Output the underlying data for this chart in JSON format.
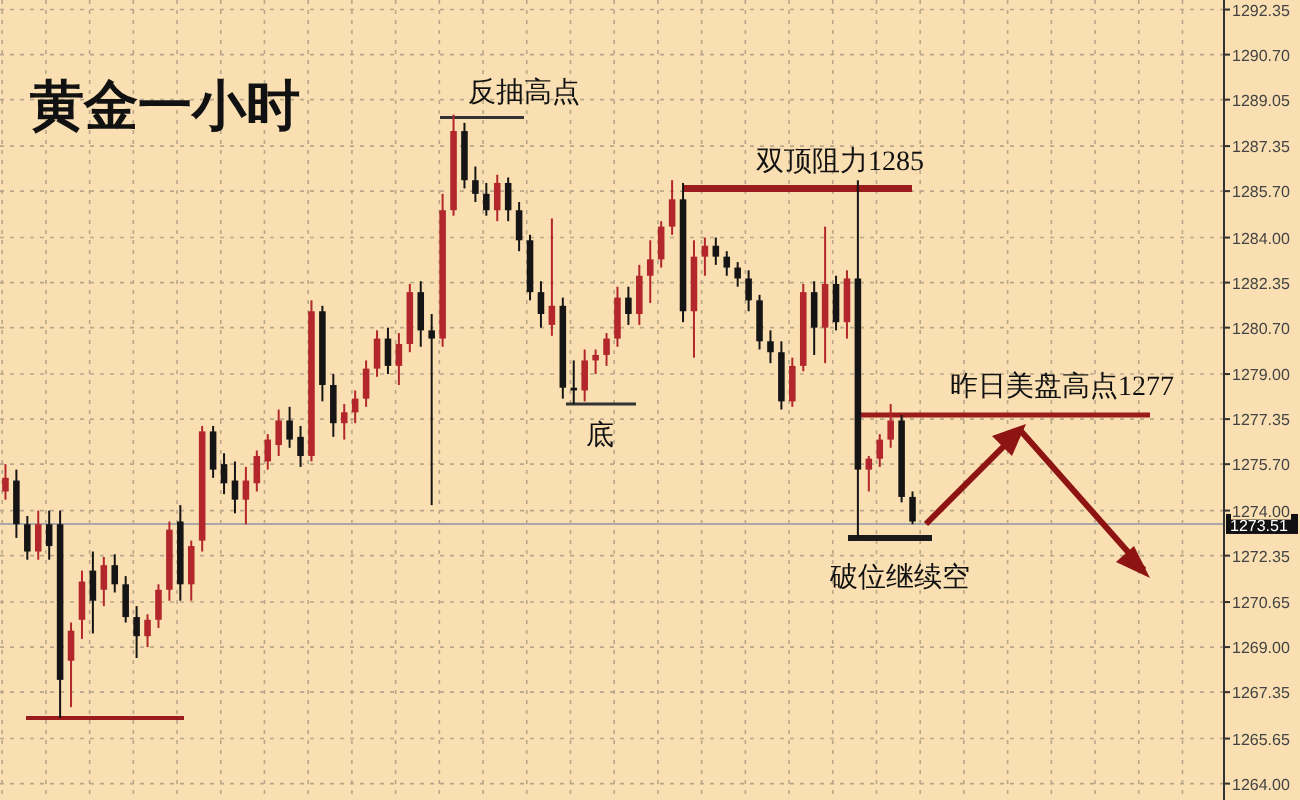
{
  "chart_data": {
    "type": "candlestick",
    "title": "黄金一小时",
    "categories": [
      null,
      null,
      null,
      null,
      null,
      null,
      null,
      null,
      null,
      null,
      null,
      null,
      null,
      null,
      null,
      null,
      null,
      null,
      null,
      null,
      null,
      null,
      null,
      null,
      null,
      null,
      null,
      null,
      null,
      null,
      null,
      null,
      null,
      null,
      null,
      null,
      null,
      null,
      null,
      null,
      null,
      null,
      null,
      null,
      null,
      null,
      null,
      null,
      null,
      null,
      null,
      null,
      null,
      null,
      null,
      null,
      null,
      null,
      null,
      null,
      null,
      null,
      null,
      null,
      null,
      null,
      null,
      null,
      null,
      null,
      null,
      null,
      null,
      null,
      null,
      null,
      null,
      null,
      null,
      null,
      null,
      null,
      null,
      null,
      null,
      null,
      null,
      null,
      null,
      null,
      null,
      null,
      null,
      null,
      null,
      null,
      null,
      null,
      null,
      null,
      null,
      null,
      null,
      null,
      null,
      null,
      null,
      null,
      null,
      null,
      null,
      null
    ],
    "ohlc": [
      [
        1274.7,
        1275.7,
        1274.4,
        1275.2
      ],
      [
        1275.1,
        1275.5,
        1273.0,
        1273.5
      ],
      [
        1273.5,
        1273.8,
        1272.2,
        1272.5
      ],
      [
        1272.5,
        1274.0,
        1272.2,
        1273.5
      ],
      [
        1273.5,
        1274.0,
        1272.2,
        1272.7
      ],
      [
        1273.5,
        1274.0,
        1266.4,
        1267.8
      ],
      [
        1268.5,
        1269.9,
        1266.8,
        1269.6
      ],
      [
        1270.0,
        1271.8,
        1269.3,
        1271.4
      ],
      [
        1271.8,
        1272.5,
        1269.5,
        1270.7
      ],
      [
        1271.1,
        1272.3,
        1270.5,
        1272.0
      ],
      [
        1272.0,
        1272.4,
        1271.0,
        1271.3
      ],
      [
        1271.3,
        1271.6,
        1269.9,
        1270.1
      ],
      [
        1270.1,
        1270.5,
        1268.6,
        1269.4
      ],
      [
        1269.4,
        1270.2,
        1269.0,
        1270.0
      ],
      [
        1270.0,
        1271.3,
        1269.7,
        1271.1
      ],
      [
        1271.1,
        1273.6,
        1270.7,
        1273.3
      ],
      [
        1273.6,
        1274.2,
        1270.7,
        1271.3
      ],
      [
        1271.3,
        1272.9,
        1270.7,
        1272.7
      ],
      [
        1272.9,
        1277.1,
        1272.5,
        1276.9
      ],
      [
        1276.9,
        1277.1,
        1275.2,
        1275.5
      ],
      [
        1275.7,
        1276.1,
        1274.6,
        1275.0
      ],
      [
        1275.1,
        1275.8,
        1273.9,
        1274.4
      ],
      [
        1274.4,
        1275.6,
        1273.5,
        1275.1
      ],
      [
        1275.0,
        1276.2,
        1274.7,
        1276.0
      ],
      [
        1275.8,
        1276.8,
        1275.5,
        1276.6
      ],
      [
        1276.4,
        1277.7,
        1276.0,
        1277.3
      ],
      [
        1277.3,
        1277.8,
        1276.3,
        1276.6
      ],
      [
        1276.7,
        1277.1,
        1275.6,
        1276.0
      ],
      [
        1276.0,
        1281.7,
        1275.8,
        1281.3
      ],
      [
        1281.3,
        1281.5,
        1278.0,
        1278.6
      ],
      [
        1278.6,
        1279.0,
        1276.7,
        1277.2
      ],
      [
        1277.2,
        1277.9,
        1276.6,
        1277.6
      ],
      [
        1277.6,
        1278.4,
        1277.2,
        1278.1
      ],
      [
        1278.1,
        1279.5,
        1277.8,
        1279.2
      ],
      [
        1279.2,
        1280.6,
        1278.9,
        1280.3
      ],
      [
        1280.3,
        1280.7,
        1279.0,
        1279.3
      ],
      [
        1279.3,
        1280.5,
        1278.6,
        1280.1
      ],
      [
        1280.1,
        1282.3,
        1279.8,
        1282.0
      ],
      [
        1282.0,
        1282.4,
        1280.0,
        1280.6
      ],
      [
        1280.6,
        1281.2,
        1274.2,
        1280.3
      ],
      [
        1280.3,
        1285.6,
        1280.0,
        1285.0
      ],
      [
        1285.0,
        1288.5,
        1284.8,
        1287.9
      ],
      [
        1287.9,
        1288.2,
        1285.8,
        1286.1
      ],
      [
        1286.1,
        1286.6,
        1285.3,
        1285.6
      ],
      [
        1285.6,
        1286.0,
        1284.8,
        1285.0
      ],
      [
        1285.0,
        1286.3,
        1284.6,
        1286.0
      ],
      [
        1286.0,
        1286.2,
        1284.6,
        1285.0
      ],
      [
        1285.0,
        1285.3,
        1283.5,
        1283.9
      ],
      [
        1283.9,
        1284.1,
        1281.7,
        1282.0
      ],
      [
        1282.0,
        1282.4,
        1280.7,
        1281.2
      ],
      [
        1280.8,
        1284.7,
        1280.4,
        1281.5
      ],
      [
        1281.5,
        1281.8,
        1278.1,
        1278.5
      ],
      [
        1278.5,
        1279.5,
        1277.9,
        1278.4
      ],
      [
        1278.4,
        1279.9,
        1278.0,
        1279.5
      ],
      [
        1279.5,
        1279.9,
        1279.0,
        1279.7
      ],
      [
        1279.7,
        1280.5,
        1279.3,
        1280.3
      ],
      [
        1280.3,
        1282.2,
        1280.0,
        1281.8
      ],
      [
        1281.8,
        1282.2,
        1280.8,
        1281.2
      ],
      [
        1281.2,
        1283.0,
        1280.8,
        1282.6
      ],
      [
        1282.6,
        1283.9,
        1281.6,
        1283.2
      ],
      [
        1283.2,
        1284.6,
        1282.9,
        1284.4
      ],
      [
        1284.4,
        1286.1,
        1284.1,
        1285.4
      ],
      [
        1285.4,
        1286.0,
        1280.9,
        1281.3
      ],
      [
        1281.3,
        1283.9,
        1279.6,
        1283.3
      ],
      [
        1283.3,
        1284.0,
        1282.6,
        1283.7
      ],
      [
        1283.7,
        1284.0,
        1283.0,
        1283.3
      ],
      [
        1283.3,
        1283.5,
        1282.6,
        1282.9
      ],
      [
        1282.9,
        1283.1,
        1282.2,
        1282.5
      ],
      [
        1282.5,
        1282.8,
        1281.3,
        1281.7
      ],
      [
        1281.7,
        1281.9,
        1279.9,
        1280.2
      ],
      [
        1280.2,
        1280.6,
        1279.4,
        1279.8
      ],
      [
        1279.8,
        1280.2,
        1277.7,
        1278.0
      ],
      [
        1278.0,
        1279.6,
        1277.8,
        1279.3
      ],
      [
        1279.3,
        1282.3,
        1279.1,
        1282.0
      ],
      [
        1282.0,
        1282.4,
        1279.7,
        1280.7
      ],
      [
        1280.7,
        1284.4,
        1279.4,
        1282.3
      ],
      [
        1282.3,
        1282.6,
        1280.6,
        1280.9
      ],
      [
        1280.9,
        1282.8,
        1280.3,
        1282.5
      ],
      [
        1282.5,
        1286.1,
        1273.0,
        1275.5
      ],
      [
        1275.5,
        1276.0,
        1274.7,
        1275.9
      ],
      [
        1275.9,
        1276.8,
        1275.6,
        1276.6
      ],
      [
        1276.6,
        1277.9,
        1276.3,
        1277.3
      ],
      [
        1277.3,
        1277.5,
        1274.3,
        1274.5
      ],
      [
        1274.5,
        1274.7,
        1273.5,
        1273.6
      ],
      null,
      null,
      null,
      null,
      null,
      null,
      null,
      null,
      null,
      null,
      null,
      null,
      null,
      null,
      null,
      null,
      null,
      null,
      null,
      null,
      null,
      null,
      null,
      null,
      null,
      null,
      null,
      null
    ],
    "colors": [
      "#b3262b",
      "#151515",
      "#151515",
      "#b3262b",
      "#151515",
      "#151515",
      "#b3262b",
      "#b3262b",
      "#151515",
      "#b3262b",
      "#151515",
      "#151515",
      "#151515",
      "#b3262b",
      "#b3262b",
      "#b3262b",
      "#151515",
      "#b3262b",
      "#b3262b",
      "#151515",
      "#151515",
      "#151515",
      "#b3262b",
      "#b3262b",
      "#b3262b",
      "#b3262b",
      "#151515",
      "#151515",
      "#b3262b",
      "#151515",
      "#151515",
      "#b3262b",
      "#b3262b",
      "#b3262b",
      "#b3262b",
      "#151515",
      "#b3262b",
      "#b3262b",
      "#151515",
      "#151515",
      "#b3262b",
      "#b3262b",
      "#151515",
      "#151515",
      "#151515",
      "#b3262b",
      "#151515",
      "#151515",
      "#151515",
      "#151515",
      "#b3262b",
      "#151515",
      "#151515",
      "#b3262b",
      "#b3262b",
      "#b3262b",
      "#b3262b",
      "#151515",
      "#b3262b",
      "#b3262b",
      "#b3262b",
      "#b3262b",
      "#151515",
      "#b3262b",
      "#b3262b",
      "#151515",
      "#151515",
      "#151515",
      "#151515",
      "#151515",
      "#151515",
      "#151515",
      "#b3262b",
      "#b3262b",
      "#151515",
      "#b3262b",
      "#151515",
      "#b3262b",
      "#151515",
      "#b3262b",
      "#b3262b",
      "#b3262b",
      "#151515",
      "#151515",
      null,
      null,
      null,
      null,
      null,
      null,
      null,
      null,
      null,
      null,
      null,
      null,
      null,
      null,
      null,
      null,
      null,
      null,
      null,
      null,
      null,
      null,
      null,
      null,
      null,
      null,
      null,
      null
    ],
    "ylim": [
      1263.4,
      1292.7
    ],
    "yticks": [
      {
        "value": 1292.35,
        "label": "1292.35"
      },
      {
        "value": 1290.7,
        "label": "1290.70"
      },
      {
        "value": 1289.05,
        "label": "1289.05"
      },
      {
        "value": 1287.35,
        "label": "1287.35"
      },
      {
        "value": 1285.7,
        "label": "1285.70"
      },
      {
        "value": 1284.0,
        "label": "1284.00"
      },
      {
        "value": 1282.35,
        "label": "1282.35"
      },
      {
        "value": 1280.7,
        "label": "1280.70"
      },
      {
        "value": 1279.0,
        "label": "1279.00"
      },
      {
        "value": 1277.35,
        "label": "1277.35"
      },
      {
        "value": 1275.7,
        "label": "1275.70"
      },
      {
        "value": 1274.0,
        "label": "1274.00"
      },
      {
        "value": 1272.35,
        "label": "1272.35"
      },
      {
        "value": 1270.65,
        "label": "1270.65"
      },
      {
        "value": 1269.0,
        "label": "1269.00"
      },
      {
        "value": 1267.35,
        "label": "1267.35"
      },
      {
        "value": 1265.65,
        "label": "1265.65"
      },
      {
        "value": 1264.0,
        "label": "1264.00"
      }
    ],
    "ref_lines": [
      {
        "axis": "y",
        "value": 1266.4,
        "color": "#9b1c1c"
      },
      {
        "axis": "y",
        "value": 1288.4,
        "label": "反抽高点",
        "color": "#333333"
      },
      {
        "axis": "y",
        "value": 1277.9,
        "label": "底",
        "color": "#333333"
      },
      {
        "axis": "y",
        "value": 1285.8,
        "label": "双顶阻力1285",
        "color": "#9b1c1c"
      },
      {
        "axis": "y",
        "value": 1277.5,
        "label": "昨日美盘高点1277",
        "color": "#9b1c1c"
      },
      {
        "axis": "y",
        "value": 1273.0,
        "label": "破位继续空",
        "color": "#1a1a1a"
      },
      {
        "axis": "y",
        "value": 1273.51,
        "label": "1273.51",
        "color": "#a8a8a8"
      }
    ],
    "grid": true,
    "tick_labels": "y"
  }
}
